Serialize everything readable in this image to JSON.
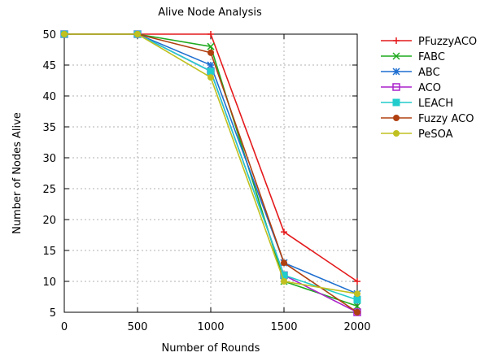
{
  "chart_data": {
    "type": "line",
    "title": "Alive Node Analysis",
    "xlabel": "Number of Rounds",
    "ylabel": "Number of Nodes Alive",
    "x": [
      0,
      500,
      1000,
      1500,
      2000
    ],
    "xlim": [
      0,
      2000
    ],
    "ylim": [
      5,
      50
    ],
    "xticks": [
      0,
      500,
      1000,
      1500,
      2000
    ],
    "yticks": [
      5,
      10,
      15,
      20,
      25,
      30,
      35,
      40,
      45,
      50
    ],
    "grid": true,
    "legend_position": "outside-right",
    "series": [
      {
        "name": "PFuzzyACO",
        "color": "#e41a1c",
        "marker": "plus",
        "values": [
          50,
          50,
          50,
          18,
          10
        ]
      },
      {
        "name": "FABC",
        "color": "#1faa1f",
        "marker": "cross",
        "values": [
          50,
          50,
          48,
          10,
          6
        ]
      },
      {
        "name": "ABC",
        "color": "#1e6fd0",
        "marker": "star",
        "values": [
          50,
          50,
          45,
          13,
          8
        ]
      },
      {
        "name": "ACO",
        "color": "#aa22cc",
        "marker": "square-open",
        "values": [
          50,
          50,
          44,
          11,
          5
        ]
      },
      {
        "name": "LEACH",
        "color": "#22cccc",
        "marker": "square-filled",
        "values": [
          50,
          50,
          44,
          11,
          7
        ]
      },
      {
        "name": "Fuzzy ACO",
        "color": "#b04010",
        "marker": "circle",
        "values": [
          50,
          50,
          47,
          13,
          5
        ]
      },
      {
        "name": "PeSOA",
        "color": "#c0c020",
        "marker": "circle",
        "values": [
          50,
          50,
          43,
          10,
          8
        ]
      }
    ]
  }
}
